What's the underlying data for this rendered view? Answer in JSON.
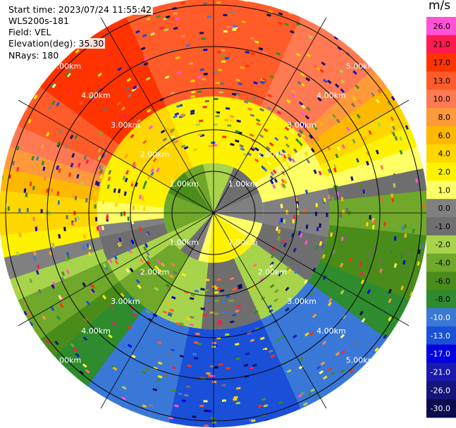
{
  "header": {
    "start_time": "Start time: 2023/07/24 11:55:42",
    "instrument": "WLS200s-181",
    "field": "Field: VEL",
    "elevation": "Elevation(deg): 35.30",
    "nrays": "NRays: 180"
  },
  "chart_data": {
    "type": "heatmap",
    "projection": "polar PPI",
    "field": "VEL",
    "units": "m/s",
    "range_rings_km": [
      1.0,
      2.0,
      3.0,
      4.0,
      5.0
    ],
    "ring_labels": [
      "1.00km",
      "2.00km",
      "3.00km",
      "4.00km",
      "5.00km"
    ],
    "azimuth_spoke_step_deg": 30,
    "colorbar": {
      "label": "m/s",
      "ticks": [
        "26.0",
        "21.0",
        "17.0",
        "13.0",
        "10.0",
        "8.0",
        "6.0",
        "4.0",
        "2.0",
        "1.0",
        "0.0",
        "-1.0",
        "-2.0",
        "-4.0",
        "-6.0",
        "-8.0",
        "-10.0",
        "-13.0",
        "-17.0",
        "-21.0",
        "-26.0",
        "-30.0"
      ],
      "colors": [
        "#ff52d6",
        "#ff1a4f",
        "#ff3300",
        "#ff5c2a",
        "#ff7a52",
        "#ff9a3a",
        "#ffb800",
        "#ffd700",
        "#fff200",
        "#ffff66",
        "#808080",
        "#6e6e6e",
        "#a8d44c",
        "#6fa82a",
        "#4a8c1a",
        "#2e8b2e",
        "#3a78d8",
        "#1a4fd8",
        "#0000e0",
        "#1a1ab0",
        "#14147a",
        "#0a0a4f"
      ]
    },
    "sector_velocity_mps": [
      {
        "azimuth_deg": 0,
        "near": -2.0,
        "mid": 2.0,
        "far": 13.0
      },
      {
        "azimuth_deg": 45,
        "near": -1.0,
        "mid": 2.0,
        "far": 10.0
      },
      {
        "azimuth_deg": 90,
        "near": 0.0,
        "mid": 0.0,
        "far": -4.0
      },
      {
        "azimuth_deg": 135,
        "near": 2.0,
        "mid": -2.0,
        "far": -10.0
      },
      {
        "azimuth_deg": 180,
        "near": 2.0,
        "mid": -1.0,
        "far": -13.0
      },
      {
        "azimuth_deg": 225,
        "near": -2.0,
        "mid": -4.0,
        "far": -8.0
      },
      {
        "azimuth_deg": 270,
        "near": -4.0,
        "mid": 1.0,
        "far": 4.0
      },
      {
        "azimuth_deg": 315,
        "near": -6.0,
        "mid": 4.0,
        "far": 17.0
      }
    ]
  }
}
